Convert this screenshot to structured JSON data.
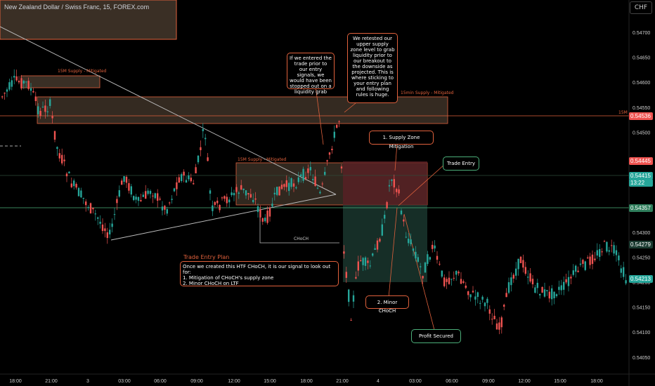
{
  "header": {
    "symbol_title": "New Zealand Dollar / Swiss Franc, 15, FOREX.com",
    "currency_badge": "CHF"
  },
  "colors": {
    "up": "#26a69a",
    "down": "#ef5350",
    "annotation": "#e0613c",
    "accent_green": "#4caf7a",
    "zone_fill": "#3a2f25"
  },
  "annotations": {
    "zone_15m_supply": "15M Supply - Mitigated",
    "zone_15min_supply": "15min Supply - Mitigated",
    "zone_15m_supply_2": "15M Supply - Mitigated",
    "line_15m": "15M",
    "choch": "CHoCH",
    "note_entered": "If we entered the trade prior to our entry signals, we would have been stopped out on a liquidity grab",
    "note_retested": "We retested our upper supply zone level to grab liquidity prior to our breakout to the downside as projected. This is where sticking to your entry plan and following rules is huge.",
    "note_supply_mitigation": "1. Supply Zone Mitigation",
    "note_trade_entry": "Trade Entry",
    "note_minor_choch": "2. Minor CHoCH",
    "note_profit": "Profit Secured",
    "plan_title": "Trade Entry Plan",
    "plan_line1": "Once we created this HTF CHoCH, it is our signal to look out for:",
    "plan_line2": "1. Mitigation of CHoCH's supply zone",
    "plan_line3": "2. Minor CHoCH on LTF"
  },
  "price_axis": {
    "ticks": [
      "0.54700",
      "0.54650",
      "0.54600",
      "0.54550",
      "0.54500",
      "0.54300",
      "0.54250",
      "0.54200",
      "0.54150",
      "0.54100",
      "0.54050"
    ],
    "tags": [
      {
        "label": "0.54536",
        "color": "#ef5350"
      },
      {
        "label": "0.54445",
        "color": "#ef5350"
      },
      {
        "label": "0.54415",
        "color": "#26a69a"
      },
      {
        "label": "13:22",
        "color": "#26a69a"
      },
      {
        "label": "0.54357",
        "color": "#2e7d5b"
      },
      {
        "label": "0.54279",
        "color": "#1a3a30"
      },
      {
        "label": "0.54213",
        "color": "#26a69a"
      }
    ]
  },
  "time_axis": {
    "labels": [
      "18:00",
      "21:00",
      "3",
      "03:00",
      "06:00",
      "09:00",
      "12:00",
      "15:00",
      "18:00",
      "21:00",
      "4",
      "03:00",
      "06:00",
      "09:00",
      "12:00",
      "15:00",
      "18:00"
    ]
  }
}
